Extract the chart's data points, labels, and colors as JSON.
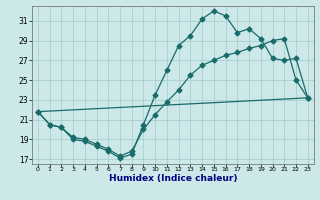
{
  "xlabel": "Humidex (Indice chaleur)",
  "bg_color": "#cce8e8",
  "line_color": "#1a6b6b",
  "grid_color": "#aacece",
  "xlim": [
    -0.5,
    23.5
  ],
  "ylim": [
    16.5,
    32.5
  ],
  "xticks": [
    0,
    1,
    2,
    3,
    4,
    5,
    6,
    7,
    8,
    9,
    10,
    11,
    12,
    13,
    14,
    15,
    16,
    17,
    18,
    19,
    20,
    21,
    22,
    23
  ],
  "yticks": [
    17,
    19,
    21,
    23,
    25,
    27,
    29,
    31
  ],
  "line1_x": [
    0,
    1,
    2,
    3,
    4,
    5,
    6,
    7,
    8,
    9,
    10,
    11,
    12,
    13,
    14,
    15,
    16,
    17,
    18,
    19,
    20,
    21,
    22,
    23
  ],
  "line1_y": [
    21.8,
    20.5,
    20.2,
    19.0,
    18.8,
    18.3,
    17.8,
    17.1,
    17.5,
    20.5,
    23.5,
    26.0,
    28.5,
    29.5,
    31.2,
    32.0,
    31.5,
    29.8,
    30.2,
    29.2,
    27.2,
    27.0,
    27.2,
    23.2
  ],
  "line2_x": [
    0,
    1,
    2,
    3,
    4,
    5,
    6,
    7,
    8,
    9,
    10,
    11,
    12,
    13,
    14,
    15,
    16,
    17,
    18,
    19,
    20,
    21,
    22,
    23
  ],
  "line2_y": [
    21.8,
    20.5,
    20.2,
    19.2,
    19.0,
    18.5,
    18.0,
    17.3,
    17.8,
    20.0,
    21.5,
    22.8,
    24.0,
    25.5,
    26.5,
    27.0,
    27.5,
    27.8,
    28.2,
    28.5,
    29.0,
    29.2,
    25.0,
    23.2
  ],
  "line3_x": [
    0,
    23
  ],
  "line3_y": [
    21.8,
    23.2
  ],
  "marker": "D",
  "markersize": 2.5,
  "linewidth": 0.9
}
